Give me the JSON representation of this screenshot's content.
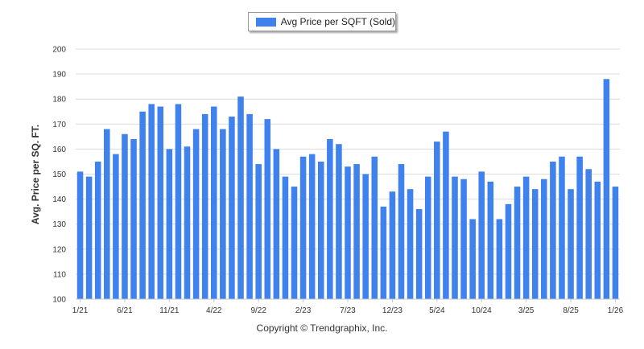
{
  "legend": {
    "label": "Avg Price per SQFT (Sold)"
  },
  "copyright": "Copyright © Trendgraphix, Inc.",
  "colors": {
    "bar": "#3f82ee",
    "grid": "#dcdcdc",
    "axis_text": "#333333"
  },
  "chart_data": {
    "type": "bar",
    "title": "",
    "xlabel": "",
    "ylabel": "Avg. Price per SQ. FT.",
    "ylim": [
      100,
      200
    ],
    "yticks": [
      100,
      110,
      120,
      130,
      140,
      150,
      160,
      170,
      180,
      190,
      200
    ],
    "grid": true,
    "legend_position": "top-center",
    "xtick_labels": [
      {
        "index": 0,
        "label": "1/21"
      },
      {
        "index": 5,
        "label": "6/21"
      },
      {
        "index": 10,
        "label": "11/21"
      },
      {
        "index": 15,
        "label": "4/22"
      },
      {
        "index": 20,
        "label": "9/22"
      },
      {
        "index": 25,
        "label": "2/23"
      },
      {
        "index": 30,
        "label": "7/23"
      },
      {
        "index": 35,
        "label": "12/23"
      },
      {
        "index": 40,
        "label": "5/24"
      },
      {
        "index": 45,
        "label": "10/24"
      },
      {
        "index": 50,
        "label": "3/25"
      },
      {
        "index": 55,
        "label": "8/25"
      },
      {
        "index": 60,
        "label": "1/26"
      }
    ],
    "series": [
      {
        "name": "Avg Price per SQFT (Sold)",
        "values": [
          151,
          149,
          155,
          168,
          158,
          166,
          164,
          175,
          178,
          177,
          160,
          178,
          161,
          168,
          174,
          177,
          168,
          173,
          181,
          174,
          154,
          172,
          160,
          149,
          145,
          157,
          158,
          155,
          164,
          162,
          153,
          154,
          150,
          157,
          137,
          143,
          154,
          144,
          136,
          149,
          163,
          167,
          149,
          148,
          132,
          151,
          147,
          132,
          138,
          145,
          149,
          144,
          148,
          155,
          157,
          144,
          157,
          152,
          147,
          188,
          145
        ]
      }
    ]
  }
}
